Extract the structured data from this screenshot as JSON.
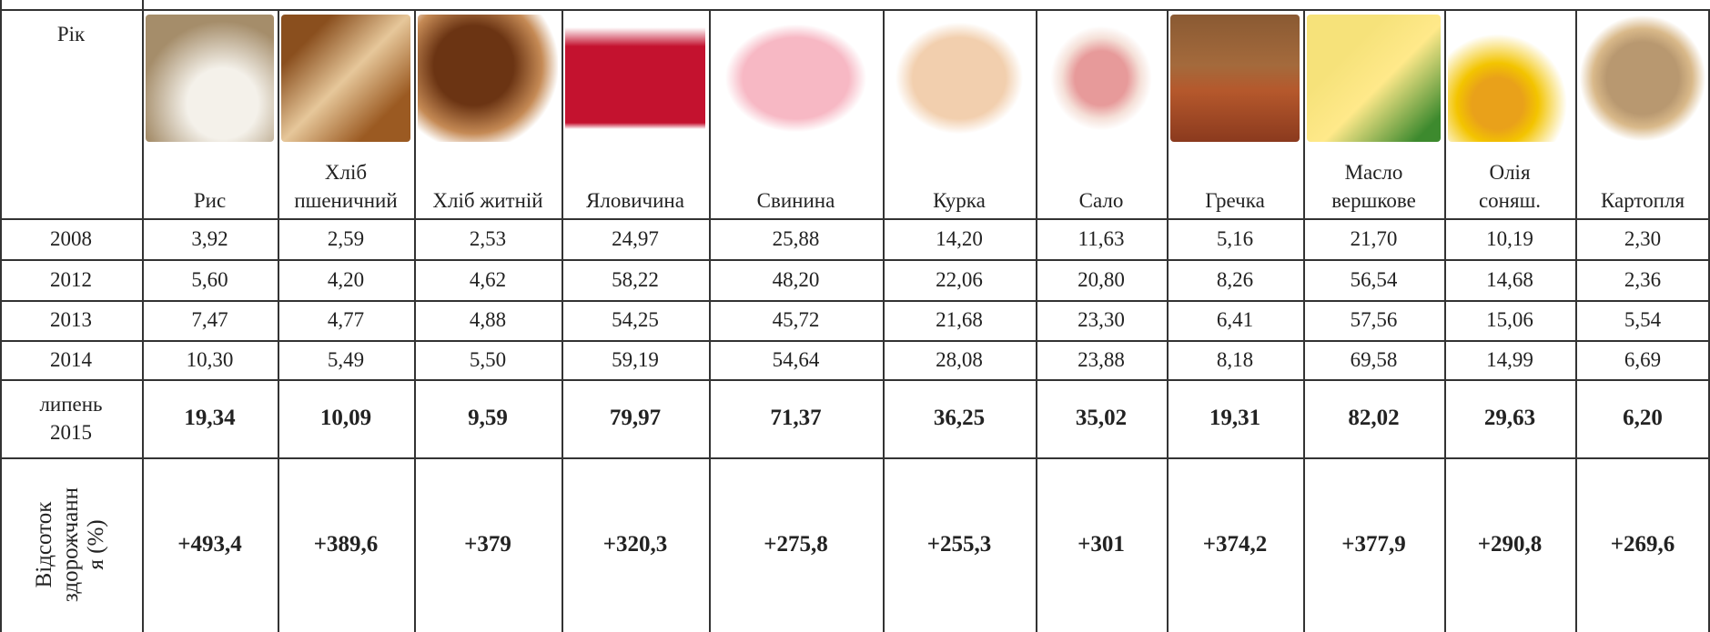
{
  "header": {
    "year_label": "Рік",
    "products": [
      {
        "name_lines": [
          "Рис"
        ]
      },
      {
        "name_lines": [
          "Хліб",
          "пшеничний"
        ]
      },
      {
        "name_lines": [
          "Хліб житній"
        ]
      },
      {
        "name_lines": [
          "Яловичина"
        ]
      },
      {
        "name_lines": [
          "Свинина"
        ]
      },
      {
        "name_lines": [
          "Курка"
        ]
      },
      {
        "name_lines": [
          "Сало"
        ]
      },
      {
        "name_lines": [
          "Гречка"
        ]
      },
      {
        "name_lines": [
          "Масло",
          "вершкове"
        ]
      },
      {
        "name_lines": [
          "Олія",
          "соняш."
        ]
      },
      {
        "name_lines": [
          "Картопля"
        ]
      }
    ]
  },
  "rows": [
    {
      "label_lines": [
        "2008"
      ],
      "values": [
        "3,92",
        "2,59",
        "2,53",
        "24,97",
        "25,88",
        "14,20",
        "11,63",
        "5,16",
        "21,70",
        "10,19",
        "2,30"
      ]
    },
    {
      "label_lines": [
        "2012"
      ],
      "values": [
        "5,60",
        "4,20",
        "4,62",
        "58,22",
        "48,20",
        "22,06",
        "20,80",
        "8,26",
        "56,54",
        "14,68",
        "2,36"
      ]
    },
    {
      "label_lines": [
        "2013"
      ],
      "values": [
        "7,47",
        "4,77",
        "4,88",
        "54,25",
        "45,72",
        "21,68",
        "23,30",
        "6,41",
        "57,56",
        "15,06",
        "5,54"
      ]
    },
    {
      "label_lines": [
        "2014"
      ],
      "values": [
        "10,30",
        "5,49",
        "5,50",
        "59,19",
        "54,64",
        "28,08",
        "23,88",
        "8,18",
        "69,58",
        "14,99",
        "6,69"
      ]
    },
    {
      "label_lines": [
        "липень",
        "2015"
      ],
      "values": [
        "19,34",
        "10,09",
        "9,59",
        "79,97",
        "71,37",
        "36,25",
        "35,02",
        "19,31",
        "82,02",
        "29,63",
        "6,20"
      ]
    }
  ],
  "percent_row": {
    "label_lines": [
      "Відсоток",
      "здорожчанн",
      "я (%)"
    ],
    "values": [
      "+493,4",
      "+389,6",
      "+379",
      "+320,3",
      "+275,8",
      "+255,3",
      "+301",
      "+374,2",
      "+377,9",
      "+290,8",
      "+269,6"
    ]
  }
}
